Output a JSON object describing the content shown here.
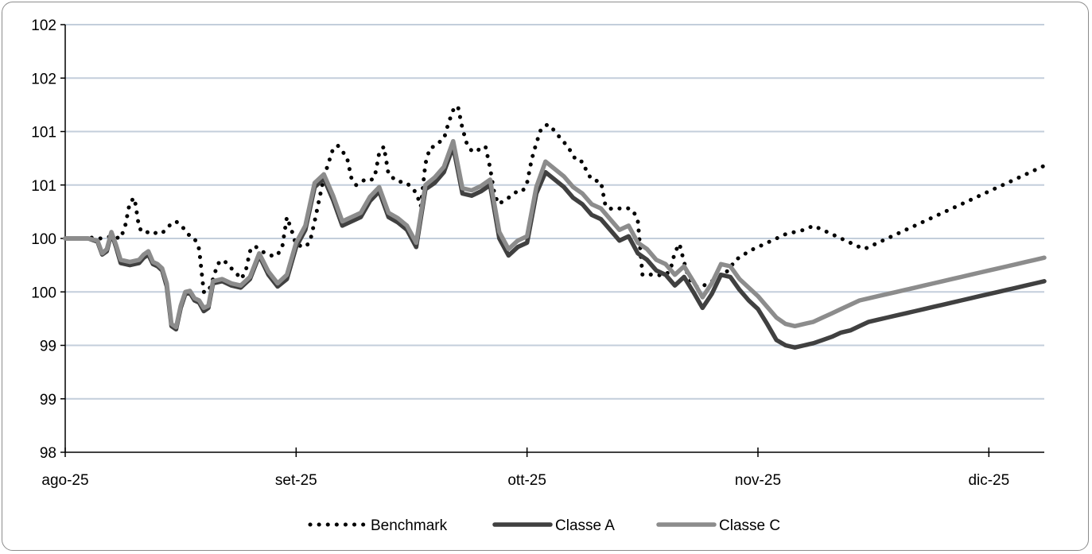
{
  "chart_data": {
    "type": "line",
    "x_tick_labels": [
      "ago-25",
      "set-25",
      "ott-25",
      "nov-25",
      "dic-25"
    ],
    "y_tick_labels": [
      "98",
      "99",
      "99",
      "100",
      "100",
      "101",
      "101",
      "102",
      "102"
    ],
    "ylim": [
      98,
      102
    ],
    "grid": true,
    "legend_position": "bottom",
    "series": [
      {
        "name": "Benchmark",
        "color": "#000000",
        "style": "dotted",
        "x": [
          0,
          3,
          5,
          6,
          7,
          8,
          10,
          12,
          13,
          14,
          15,
          16,
          17,
          18,
          19,
          20,
          21,
          23,
          24,
          26,
          27,
          28,
          29,
          30,
          31,
          32,
          33,
          34,
          35,
          36,
          37,
          38,
          39,
          40,
          41,
          42,
          43,
          44,
          45,
          46,
          47,
          48,
          49,
          50,
          51,
          52,
          53,
          54,
          56,
          58,
          59,
          61,
          62,
          63,
          64,
          65,
          66,
          67,
          68,
          69,
          70,
          72,
          73,
          74,
          75,
          76,
          77,
          78,
          79,
          80,
          81,
          82,
          83,
          84,
          85,
          86,
          87,
          88,
          89,
          90,
          91,
          92,
          93,
          94,
          95,
          96,
          97,
          98,
          99,
          100,
          101,
          102,
          103,
          104,
          105,
          106,
          107,
          108,
          109,
          110,
          111,
          112,
          113,
          114,
          115,
          116,
          117,
          118,
          119,
          120,
          121,
          122,
          123,
          124,
          125,
          126,
          127,
          128,
          129,
          130,
          131,
          132,
          133,
          134,
          135,
          136,
          137,
          138,
          139,
          140,
          141,
          142,
          143,
          144,
          145,
          146,
          147,
          148,
          149,
          150,
          151,
          152,
          153,
          154,
          155,
          156,
          158,
          160,
          161,
          162,
          163,
          164,
          165,
          166,
          167,
          168,
          169,
          170,
          171,
          172,
          173,
          174,
          175,
          176,
          177,
          178,
          179,
          180,
          181,
          182,
          183,
          184,
          185,
          186,
          187,
          188,
          189,
          190,
          191,
          192,
          193,
          194,
          195,
          196,
          197,
          198,
          199,
          200,
          201,
          202,
          203,
          204,
          205,
          206,
          207,
          208,
          209,
          210,
          211,
          212
        ],
        "values": [
          100.0,
          100.0,
          100.0,
          100.01,
          100.0,
          100.0,
          100.02,
          100.0,
          100.12,
          100.34,
          100.38,
          100.1,
          100.05,
          100.06,
          100.04,
          100.06,
          100.05,
          100.14,
          100.16,
          100.08,
          100.02,
          100.0,
          99.9,
          99.5,
          99.5,
          99.62,
          99.76,
          99.8,
          99.77,
          99.72,
          99.68,
          99.62,
          99.68,
          99.88,
          99.93,
          99.9,
          99.87,
          99.86,
          99.83,
          99.85,
          99.92,
          100.2,
          100.08,
          99.94,
          99.93,
          99.92,
          99.97,
          100.16,
          100.57,
          100.84,
          100.87,
          100.76,
          100.56,
          100.5,
          100.53,
          100.55,
          100.54,
          100.57,
          100.8,
          100.86,
          100.6,
          100.53,
          100.53,
          100.52,
          100.47,
          100.43,
          100.3,
          100.7,
          100.85,
          100.86,
          100.9,
          100.93,
          101.08,
          101.2,
          101.24,
          101.03,
          100.88,
          100.82,
          100.81,
          100.85,
          100.86,
          100.66,
          100.4,
          100.32,
          100.36,
          100.38,
          100.42,
          100.44,
          100.44,
          100.52,
          100.74,
          100.89,
          101.02,
          101.06,
          101.06,
          101.0,
          100.95,
          100.9,
          100.85,
          100.77,
          100.72,
          100.72,
          100.62,
          100.55,
          100.54,
          100.53,
          100.3,
          100.28,
          100.27,
          100.28,
          100.29,
          100.28,
          100.26,
          100.16,
          99.66,
          99.67,
          99.66,
          99.65,
          99.66,
          99.66,
          99.7,
          99.87,
          99.95,
          99.78,
          99.63,
          99.58,
          99.54,
          99.55,
          99.58,
          99.6,
          99.62,
          99.65,
          99.68,
          99.72,
          99.8,
          99.82,
          99.85,
          99.88,
          99.9,
          99.92,
          99.94,
          99.96,
          99.98,
          100.0,
          100.02,
          100.04,
          100.06,
          100.08,
          100.1,
          100.12,
          100.1,
          100.08,
          100.06,
          100.04,
          100.02,
          100.0,
          99.98,
          99.96,
          99.94,
          99.92,
          99.9,
          99.92,
          99.94,
          99.96,
          99.98,
          100.0,
          100.02,
          100.04,
          100.06,
          100.08,
          100.1,
          100.12,
          100.14,
          100.16,
          100.18,
          100.2,
          100.22,
          100.24,
          100.26,
          100.28,
          100.3,
          100.32,
          100.34,
          100.36,
          100.38,
          100.4,
          100.42,
          100.44,
          100.46,
          100.48,
          100.5,
          100.52,
          100.54,
          100.56,
          100.58,
          100.6,
          100.62,
          100.64,
          100.66,
          100.68
        ]
      },
      {
        "name": "Classe A",
        "color": "#404040",
        "style": "solid",
        "x": [
          0,
          5,
          7,
          8,
          9,
          10,
          11,
          12,
          14,
          16,
          17,
          18,
          19,
          20,
          21,
          22,
          23,
          24,
          25,
          26,
          27,
          28,
          29,
          30,
          31,
          32,
          34,
          36,
          38,
          40,
          42,
          44,
          46,
          48,
          50,
          52,
          54,
          56,
          58,
          60,
          62,
          64,
          66,
          68,
          70,
          72,
          74,
          76,
          78,
          80,
          82,
          84,
          86,
          88,
          90,
          92,
          94,
          96,
          98,
          100,
          102,
          104,
          106,
          108,
          110,
          112,
          114,
          116,
          118,
          120,
          122,
          124,
          126,
          128,
          130,
          132,
          134,
          136,
          138,
          140,
          142,
          144,
          146,
          148,
          150,
          152,
          154,
          156,
          158,
          160,
          162,
          164,
          166,
          168,
          170,
          172,
          174,
          176,
          178,
          180,
          182,
          184,
          186,
          188,
          190,
          192,
          194,
          196,
          198,
          200,
          202,
          204,
          206,
          208,
          210,
          212
        ],
        "values": [
          100.0,
          100.0,
          99.97,
          99.85,
          99.88,
          100.05,
          99.92,
          99.77,
          99.75,
          99.77,
          99.82,
          99.85,
          99.76,
          99.74,
          99.7,
          99.55,
          99.18,
          99.15,
          99.35,
          99.48,
          99.49,
          99.42,
          99.4,
          99.32,
          99.35,
          99.58,
          99.6,
          99.56,
          99.54,
          99.62,
          99.84,
          99.66,
          99.55,
          99.62,
          99.92,
          100.08,
          100.48,
          100.56,
          100.36,
          100.12,
          100.16,
          100.2,
          100.35,
          100.44,
          100.2,
          100.15,
          100.08,
          99.92,
          100.46,
          100.52,
          100.62,
          100.86,
          100.42,
          100.4,
          100.44,
          100.5,
          100.0,
          99.84,
          99.92,
          99.96,
          100.42,
          100.62,
          100.55,
          100.48,
          100.38,
          100.32,
          100.22,
          100.18,
          100.08,
          99.98,
          100.02,
          99.86,
          99.8,
          99.7,
          99.66,
          99.56,
          99.64,
          99.5,
          99.35,
          99.48,
          99.66,
          99.64,
          99.52,
          99.42,
          99.34,
          99.2,
          99.05,
          99.0,
          98.98,
          99.0,
          99.02,
          99.05,
          99.08,
          99.12,
          99.14,
          99.18,
          99.22,
          99.24,
          99.26,
          99.28,
          99.3,
          99.32,
          99.34,
          99.36,
          99.38,
          99.4,
          99.42,
          99.44,
          99.46,
          99.48,
          99.5,
          99.52,
          99.54,
          99.56,
          99.58,
          99.6
        ]
      },
      {
        "name": "Classe C",
        "color": "#8c8c8c",
        "style": "solid",
        "x": [
          0,
          5,
          7,
          8,
          9,
          10,
          11,
          12,
          14,
          16,
          17,
          18,
          19,
          20,
          21,
          22,
          23,
          24,
          25,
          26,
          27,
          28,
          29,
          30,
          31,
          32,
          34,
          36,
          38,
          40,
          42,
          44,
          46,
          48,
          50,
          52,
          54,
          56,
          58,
          60,
          62,
          64,
          66,
          68,
          70,
          72,
          74,
          76,
          78,
          80,
          82,
          84,
          86,
          88,
          90,
          92,
          94,
          96,
          98,
          100,
          102,
          104,
          106,
          108,
          110,
          112,
          114,
          116,
          118,
          120,
          122,
          124,
          126,
          128,
          130,
          132,
          134,
          136,
          138,
          140,
          142,
          144,
          146,
          148,
          150,
          152,
          154,
          156,
          158,
          160,
          162,
          164,
          166,
          168,
          170,
          172,
          174,
          176,
          178,
          180,
          182,
          184,
          186,
          188,
          190,
          192,
          194,
          196,
          198,
          200,
          202,
          204,
          206,
          208,
          210,
          212
        ],
        "values": [
          100.0,
          100.0,
          99.98,
          99.86,
          99.9,
          100.06,
          99.94,
          99.8,
          99.78,
          99.8,
          99.85,
          99.88,
          99.78,
          99.76,
          99.72,
          99.58,
          99.2,
          99.17,
          99.37,
          99.5,
          99.51,
          99.44,
          99.42,
          99.35,
          99.37,
          99.6,
          99.62,
          99.58,
          99.56,
          99.64,
          99.86,
          99.69,
          99.58,
          99.66,
          99.96,
          100.12,
          100.52,
          100.6,
          100.4,
          100.16,
          100.2,
          100.24,
          100.39,
          100.48,
          100.24,
          100.19,
          100.12,
          99.96,
          100.5,
          100.57,
          100.67,
          100.91,
          100.47,
          100.45,
          100.49,
          100.55,
          100.06,
          99.9,
          99.98,
          100.02,
          100.48,
          100.72,
          100.65,
          100.58,
          100.48,
          100.42,
          100.32,
          100.28,
          100.18,
          100.08,
          100.12,
          99.96,
          99.9,
          99.8,
          99.76,
          99.66,
          99.74,
          99.6,
          99.45,
          99.58,
          99.76,
          99.74,
          99.62,
          99.54,
          99.46,
          99.36,
          99.26,
          99.2,
          99.18,
          99.2,
          99.22,
          99.26,
          99.3,
          99.34,
          99.38,
          99.42,
          99.44,
          99.46,
          99.48,
          99.5,
          99.52,
          99.54,
          99.56,
          99.58,
          99.6,
          99.62,
          99.64,
          99.66,
          99.68,
          99.7,
          99.72,
          99.74,
          99.76,
          99.78,
          99.8,
          99.82
        ]
      }
    ]
  }
}
